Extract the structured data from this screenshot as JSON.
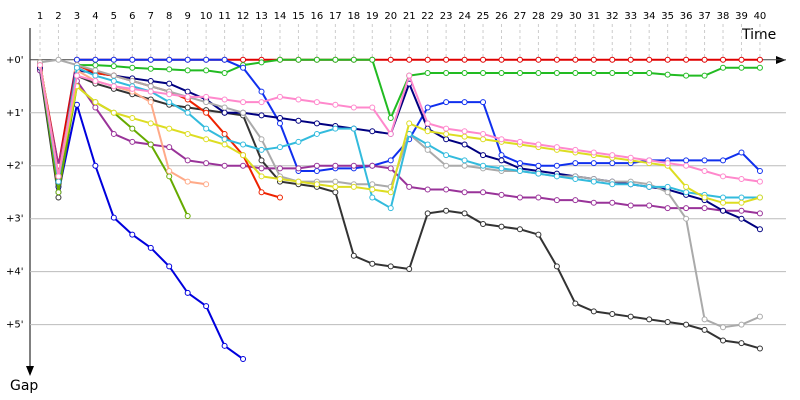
{
  "chart_data": {
    "type": "line",
    "x_label": "Time",
    "y_label": "Gap",
    "categories": [
      "1",
      "2",
      "3",
      "4",
      "5",
      "6",
      "7",
      "8",
      "9",
      "10",
      "11",
      "12",
      "13",
      "14",
      "15",
      "16",
      "17",
      "18",
      "19",
      "20",
      "21",
      "22",
      "23",
      "24",
      "25",
      "26",
      "27",
      "28",
      "29",
      "30",
      "31",
      "32",
      "33",
      "34",
      "35",
      "36",
      "37",
      "38",
      "39",
      "40"
    ],
    "ylim": [
      -0.6,
      5.8
    ],
    "y_inverted": true,
    "grid": true,
    "yticks": [
      {
        "value": 0,
        "label": "+0'"
      },
      {
        "value": 1,
        "label": "+1'"
      },
      {
        "value": 2,
        "label": "+2'"
      },
      {
        "value": 3,
        "label": "+3'"
      },
      {
        "value": 4,
        "label": "+4'"
      },
      {
        "value": 5,
        "label": "+5'"
      }
    ],
    "series": [
      {
        "color": "#e00000",
        "values": [
          0.1,
          2.0,
          0,
          0,
          0,
          0,
          0,
          0,
          0,
          0,
          0,
          0,
          0,
          0,
          0,
          0,
          0,
          0,
          0,
          0,
          0,
          0,
          0,
          0,
          0,
          0,
          0,
          0,
          0,
          0,
          0,
          0,
          0,
          0,
          0,
          0,
          0,
          0,
          0,
          0
        ]
      },
      {
        "color": "#0000dd",
        "values": [
          0.1,
          2.5,
          0.85,
          2.0,
          2.98,
          3.3,
          3.55,
          3.9,
          4.4,
          4.65,
          5.4,
          5.65,
          null,
          null,
          null,
          null,
          null,
          null,
          null,
          null,
          null,
          null,
          null,
          null,
          null,
          null,
          null,
          null,
          null,
          null,
          null,
          null,
          null,
          null,
          null,
          null,
          null,
          null,
          null,
          null
        ]
      },
      {
        "color": "#333333",
        "values": [
          0.2,
          2.6,
          0.3,
          0.45,
          0.55,
          0.65,
          0.75,
          0.85,
          0.9,
          0.95,
          1.0,
          1.05,
          1.9,
          2.3,
          2.35,
          2.4,
          2.5,
          3.7,
          3.85,
          3.9,
          3.95,
          2.9,
          2.85,
          2.9,
          3.1,
          3.15,
          3.2,
          3.3,
          3.9,
          4.6,
          4.75,
          4.8,
          4.85,
          4.9,
          4.95,
          5.0,
          5.1,
          5.3,
          5.35,
          5.45
        ]
      },
      {
        "color": "#22bb22",
        "values": [
          0.05,
          2.2,
          0.1,
          0.1,
          0.12,
          0.15,
          0.17,
          0.18,
          0.2,
          0.2,
          0.25,
          0.1,
          0.05,
          0,
          0,
          0,
          0,
          0,
          0,
          1.1,
          0.3,
          0.25,
          0.25,
          0.25,
          0.25,
          0.25,
          0.25,
          0.25,
          0.25,
          0.25,
          0.25,
          0.25,
          0.25,
          0.25,
          0.28,
          0.3,
          0.3,
          0.15,
          0.15,
          0.15
        ]
      },
      {
        "color": "#1030ee",
        "values": [
          0.1,
          2.3,
          0,
          0,
          0,
          0,
          0,
          0,
          0,
          0,
          0,
          0.15,
          0.6,
          1.2,
          2.1,
          2.1,
          2.05,
          2.05,
          2.0,
          1.9,
          1.5,
          0.9,
          0.8,
          0.8,
          0.8,
          1.8,
          1.95,
          2.0,
          2.0,
          1.95,
          1.95,
          1.95,
          1.95,
          1.9,
          1.9,
          1.9,
          1.9,
          1.9,
          1.75,
          2.1
        ]
      },
      {
        "color": "#993399",
        "values": [
          0.2,
          2.0,
          0.4,
          0.9,
          1.4,
          1.55,
          1.6,
          1.65,
          1.9,
          1.95,
          2.0,
          2.0,
          2.05,
          2.05,
          2.05,
          2.0,
          2.0,
          2.0,
          2.0,
          2.05,
          2.4,
          2.45,
          2.45,
          2.5,
          2.5,
          2.55,
          2.6,
          2.6,
          2.65,
          2.65,
          2.7,
          2.7,
          2.75,
          2.75,
          2.8,
          2.8,
          2.8,
          2.85,
          2.85,
          2.9
        ]
      },
      {
        "color": "#000080",
        "values": [
          0.15,
          2.4,
          0.2,
          0.25,
          0.3,
          0.35,
          0.4,
          0.45,
          0.6,
          0.75,
          1.0,
          1.0,
          1.05,
          1.1,
          1.15,
          1.2,
          1.25,
          1.3,
          1.35,
          1.4,
          0.45,
          1.3,
          1.5,
          1.6,
          1.8,
          1.9,
          2.05,
          2.1,
          2.15,
          2.2,
          2.25,
          2.3,
          2.35,
          2.4,
          2.45,
          2.55,
          2.65,
          2.85,
          3.0,
          3.2
        ]
      },
      {
        "color": "#66aa00",
        "values": [
          0.1,
          2.5,
          0.5,
          0.8,
          1.0,
          1.3,
          1.6,
          2.2,
          2.95,
          null,
          null,
          null,
          null,
          null,
          null,
          null,
          null,
          null,
          null,
          null,
          null,
          null,
          null,
          null,
          null,
          null,
          null,
          null,
          null,
          null,
          null,
          null,
          null,
          null,
          null,
          null,
          null,
          null,
          null,
          null
        ]
      },
      {
        "color": "#ee2200",
        "values": [
          0.05,
          2.2,
          0.1,
          0.25,
          0.3,
          0.4,
          0.5,
          0.6,
          0.75,
          1.0,
          1.4,
          1.8,
          2.5,
          2.6,
          null,
          null,
          null,
          null,
          null,
          null,
          null,
          null,
          null,
          null,
          null,
          null,
          null,
          null,
          null,
          null,
          null,
          null,
          null,
          null,
          null,
          null,
          null,
          null,
          null,
          null
        ]
      },
      {
        "color": "#ffaa88",
        "values": [
          0.05,
          2.2,
          0.2,
          0.4,
          0.5,
          0.6,
          0.8,
          2.1,
          2.3,
          2.35,
          null,
          null,
          null,
          null,
          null,
          null,
          null,
          null,
          null,
          null,
          null,
          null,
          null,
          null,
          null,
          null,
          null,
          null,
          null,
          null,
          null,
          null,
          null,
          null,
          null,
          null,
          null,
          null,
          null,
          null
        ]
      },
      {
        "color": "#aaaaaa",
        "values": [
          0.05,
          0,
          0.1,
          0.2,
          0.3,
          0.4,
          0.5,
          0.6,
          0.7,
          0.8,
          0.9,
          1.0,
          1.5,
          2.2,
          2.3,
          2.3,
          2.3,
          2.35,
          2.35,
          2.4,
          1.4,
          1.7,
          2.0,
          2.0,
          2.05,
          2.1,
          2.1,
          2.15,
          2.2,
          2.2,
          2.25,
          2.3,
          2.3,
          2.35,
          2.5,
          3.0,
          4.9,
          5.05,
          5.0,
          4.85
        ]
      },
      {
        "color": "#33bbdd",
        "values": [
          0.1,
          2.3,
          0.15,
          0.3,
          0.4,
          0.5,
          0.6,
          0.8,
          1.0,
          1.3,
          1.5,
          1.6,
          1.7,
          1.65,
          1.55,
          1.4,
          1.3,
          1.3,
          2.6,
          2.8,
          1.4,
          1.6,
          1.8,
          1.9,
          2.0,
          2.05,
          2.1,
          2.15,
          2.2,
          2.25,
          2.3,
          2.35,
          2.35,
          2.4,
          2.4,
          2.5,
          2.55,
          2.6,
          2.6,
          2.6
        ]
      },
      {
        "color": "#dddd22",
        "values": [
          0.1,
          2.2,
          0.5,
          0.8,
          1.0,
          1.1,
          1.2,
          1.3,
          1.4,
          1.5,
          1.6,
          1.8,
          2.2,
          2.25,
          2.3,
          2.35,
          2.4,
          2.4,
          2.45,
          2.5,
          1.2,
          1.35,
          1.4,
          1.45,
          1.5,
          1.55,
          1.6,
          1.65,
          1.7,
          1.75,
          1.8,
          1.85,
          1.9,
          1.95,
          2.0,
          2.4,
          2.6,
          2.7,
          2.7,
          2.6
        ]
      },
      {
        "color": "#ff88cc",
        "values": [
          0.1,
          2.2,
          0.3,
          0.4,
          0.5,
          0.55,
          0.6,
          0.65,
          0.7,
          0.7,
          0.75,
          0.8,
          0.8,
          0.7,
          0.75,
          0.8,
          0.85,
          0.9,
          0.9,
          1.4,
          0.3,
          1.2,
          1.3,
          1.35,
          1.4,
          1.5,
          1.55,
          1.6,
          1.65,
          1.7,
          1.75,
          1.8,
          1.85,
          1.9,
          1.95,
          2.0,
          2.1,
          2.2,
          2.25,
          2.3
        ]
      }
    ]
  }
}
